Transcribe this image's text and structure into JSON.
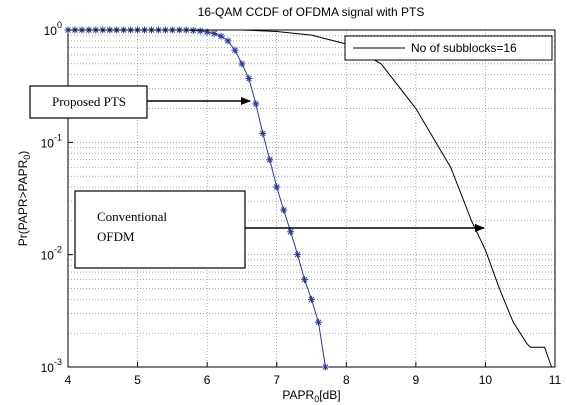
{
  "chart_data": {
    "type": "line",
    "title": "16-QAM CCDF of OFDMA signal with PTS",
    "xlabel": "PAPR_0[dB]",
    "ylabel": "Pr(PAPR>PAPR_0)",
    "xlim": [
      4,
      11
    ],
    "xticks": [
      4,
      5,
      6,
      7,
      8,
      9,
      10,
      11
    ],
    "ylim": [
      0.001,
      1
    ],
    "yticks": [
      {
        "value": 0.001,
        "label": "10^-3"
      },
      {
        "value": 0.01,
        "label": "10^-2"
      },
      {
        "value": 0.1,
        "label": "10^-1"
      },
      {
        "value": 1,
        "label": "10^0"
      }
    ],
    "log_y": true,
    "grid": true,
    "legend": "upper right",
    "series": [
      {
        "color": "#2b3a9a",
        "marker": "asterisk",
        "x": [
          4.0,
          4.1,
          4.2,
          4.3,
          4.4,
          4.5,
          4.6,
          4.7,
          4.8,
          4.9,
          5.0,
          5.1,
          5.2,
          5.3,
          5.4,
          5.5,
          5.6,
          5.7,
          5.8,
          5.9,
          6.0,
          6.1,
          6.2,
          6.3,
          6.4,
          6.5,
          6.6,
          6.7,
          6.8,
          6.9,
          7.0,
          7.1,
          7.2,
          7.3,
          7.4,
          7.5,
          7.6,
          7.7
        ],
        "values": [
          1,
          1,
          1,
          1,
          1,
          1,
          1,
          1,
          1,
          1,
          1,
          1,
          1,
          1,
          1,
          1,
          1,
          1,
          0.99,
          0.98,
          0.96,
          0.93,
          0.88,
          0.8,
          0.66,
          0.5,
          0.37,
          0.22,
          0.12,
          0.07,
          0.04,
          0.025,
          0.016,
          0.01,
          0.006,
          0.004,
          0.0025,
          0.001
        ]
      },
      {
        "name": "No of subblocks=16",
        "color": "#000000",
        "x": [
          4.0,
          5.0,
          6.0,
          6.5,
          7.0,
          7.5,
          8.0,
          8.5,
          9.0,
          9.5,
          9.8,
          10.0,
          10.2,
          10.4,
          10.6,
          10.65,
          10.85,
          10.95
        ],
        "values": [
          1,
          1,
          1,
          1,
          0.97,
          0.9,
          0.75,
          0.5,
          0.2,
          0.06,
          0.02,
          0.011,
          0.005,
          0.0025,
          0.0016,
          0.0015,
          0.0015,
          0.001
        ]
      }
    ],
    "annotations": [
      {
        "text_lines": [
          "Proposed PTS"
        ]
      },
      {
        "text_lines": [
          "Conventional",
          "OFDM"
        ]
      }
    ]
  }
}
